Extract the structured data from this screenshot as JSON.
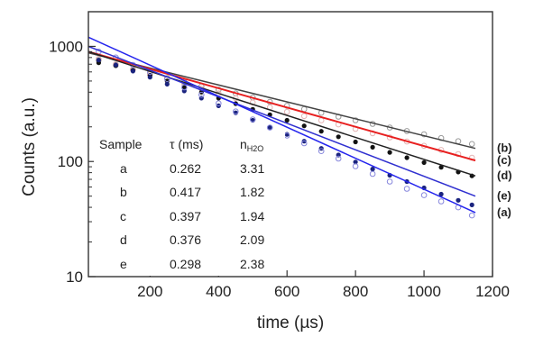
{
  "chart_data": {
    "type": "scatter",
    "title": "",
    "xlabel": {
      "prefix": "time (",
      "unit": "µs",
      "suffix": ")"
    },
    "ylabel": "Counts (a.u.)",
    "y_scale": "log",
    "xlim": [
      20,
      1200
    ],
    "ylim": [
      10,
      2000
    ],
    "x_ticks": [
      200,
      400,
      600,
      800,
      1000,
      1200
    ],
    "x_tick_labels": [
      "200",
      "400",
      "600",
      "800",
      "1000",
      "1200"
    ],
    "y_ticks": [
      10,
      100,
      1000
    ],
    "y_tick_labels": [
      "10",
      "100",
      "1000"
    ],
    "grid": false,
    "series": [
      {
        "label": "(b)",
        "color": "#999999",
        "marker": "open-circle",
        "x": [
          50,
          100,
          150,
          200,
          250,
          300,
          350,
          400,
          450,
          500,
          550,
          600,
          650,
          700,
          750,
          800,
          850,
          900,
          950,
          1000,
          1050,
          1100,
          1140
        ],
        "y": [
          760,
          690,
          630,
          580,
          530,
          490,
          450,
          420,
          390,
          360,
          330,
          305,
          285,
          265,
          245,
          228,
          212,
          197,
          184,
          172,
          160,
          150,
          142
        ],
        "fit_x": [
          20,
          1150
        ],
        "fit_y": [
          880,
          130
        ],
        "fit_color": "#444444"
      },
      {
        "label": "(c)",
        "color": "#e4b4b4",
        "marker": "open-circle",
        "x": [
          50,
          100,
          150,
          200,
          250,
          300,
          350,
          400,
          450,
          500,
          550,
          600,
          650,
          700,
          750,
          800,
          850,
          900,
          950,
          1000,
          1050,
          1100,
          1140
        ],
        "y": [
          780,
          700,
          630,
          570,
          520,
          470,
          430,
          390,
          355,
          325,
          295,
          270,
          248,
          228,
          210,
          192,
          176,
          162,
          149,
          137,
          126,
          116,
          108
        ],
        "fit_x": [
          20,
          1150
        ],
        "fit_y": [
          900,
          102
        ],
        "fit_color": "#e82020"
      },
      {
        "label": "(d)",
        "color": "#111111",
        "marker": "filled-circle",
        "x": [
          50,
          100,
          150,
          200,
          250,
          300,
          350,
          400,
          450,
          500,
          550,
          600,
          650,
          700,
          750,
          800,
          850,
          900,
          950,
          1000,
          1050,
          1100,
          1140
        ],
        "y": [
          720,
          680,
          620,
          560,
          500,
          445,
          400,
          355,
          318,
          284,
          255,
          228,
          204,
          183,
          164,
          148,
          133,
          120,
          108,
          98,
          89,
          81,
          75
        ],
        "fit_x": [
          20,
          1150
        ],
        "fit_y": [
          900,
          75
        ],
        "fit_color": "#222222"
      },
      {
        "label": "(e)",
        "color": "#1a237e",
        "marker": "filled-circle",
        "x": [
          50,
          100,
          150,
          200,
          250,
          300,
          350,
          400,
          450,
          500,
          550,
          600,
          650,
          700,
          750,
          800,
          850,
          900,
          950,
          1000,
          1050,
          1100,
          1140
        ],
        "y": [
          760,
          690,
          610,
          540,
          470,
          410,
          355,
          305,
          265,
          228,
          198,
          172,
          150,
          130,
          114,
          99,
          86,
          76,
          67,
          59,
          52,
          46,
          42
        ],
        "fit_x": [
          20,
          1150
        ],
        "fit_y": [
          1000,
          50
        ],
        "fit_color": "#3030d0"
      },
      {
        "label": "(a)",
        "color": "#8888dd",
        "marker": "open-circle",
        "x": [
          50,
          100,
          150,
          200,
          250,
          300,
          350,
          400,
          450,
          500,
          550,
          600,
          650,
          700,
          750,
          800,
          850,
          900,
          950,
          1000,
          1050,
          1100,
          1140
        ],
        "y": [
          900,
          800,
          690,
          600,
          520,
          440,
          380,
          320,
          272,
          232,
          197,
          168,
          144,
          123,
          106,
          91,
          78,
          67,
          58,
          51,
          45,
          40,
          34
        ],
        "fit_x": [
          20,
          1150
        ],
        "fit_y": [
          1200,
          36
        ],
        "fit_color": "#2525ee"
      }
    ],
    "table": {
      "headers": [
        {
          "main": "Sample",
          "sub": ""
        },
        {
          "main": "τ (ms)",
          "sub": ""
        },
        {
          "main": "n",
          "sub": "H2O"
        }
      ],
      "rows": [
        [
          "a",
          "0.262",
          "3.31"
        ],
        [
          "b",
          "0.417",
          "1.82"
        ],
        [
          "c",
          "0.397",
          "1.94"
        ],
        [
          "d",
          "0.376",
          "2.09"
        ],
        [
          "e",
          "0.298",
          "2.38"
        ]
      ]
    }
  }
}
